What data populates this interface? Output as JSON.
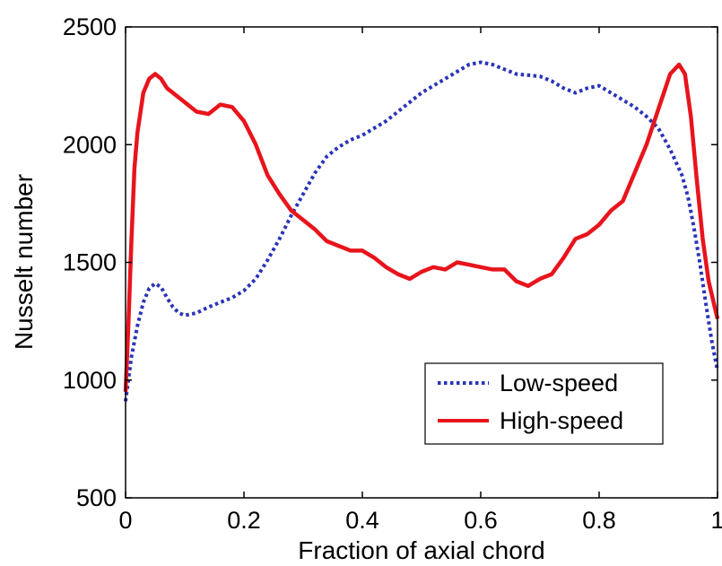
{
  "chart_data": {
    "type": "line",
    "xlabel": "Fraction of axial chord",
    "ylabel": "Nusselt number",
    "xlim": [
      0,
      1
    ],
    "ylim": [
      500,
      2500
    ],
    "xticks": [
      0,
      0.2,
      0.4,
      0.6,
      0.8,
      1
    ],
    "xtick_labels": [
      "0",
      "0.2",
      "0.4",
      "0.6",
      "0.8",
      "1"
    ],
    "yticks": [
      500,
      1000,
      1500,
      2000,
      2500
    ],
    "ytick_labels": [
      "500",
      "1000",
      "1500",
      "2000",
      "2500"
    ],
    "grid": false,
    "legend_position": "lower-right",
    "series": [
      {
        "name": "Low-speed",
        "color": "#2a34b8",
        "style": "dotted",
        "x": [
          0,
          0.01,
          0.02,
          0.03,
          0.04,
          0.05,
          0.06,
          0.07,
          0.08,
          0.09,
          0.1,
          0.12,
          0.14,
          0.16,
          0.18,
          0.2,
          0.22,
          0.24,
          0.26,
          0.28,
          0.3,
          0.32,
          0.34,
          0.36,
          0.38,
          0.4,
          0.42,
          0.44,
          0.46,
          0.48,
          0.5,
          0.52,
          0.54,
          0.56,
          0.58,
          0.6,
          0.62,
          0.64,
          0.66,
          0.68,
          0.7,
          0.72,
          0.74,
          0.76,
          0.78,
          0.8,
          0.82,
          0.84,
          0.86,
          0.88,
          0.9,
          0.92,
          0.94,
          0.95,
          0.96,
          0.97,
          0.98,
          0.99,
          1.0
        ],
        "y": [
          910,
          1100,
          1230,
          1330,
          1390,
          1410,
          1395,
          1350,
          1310,
          1285,
          1275,
          1285,
          1310,
          1330,
          1350,
          1380,
          1430,
          1510,
          1600,
          1700,
          1790,
          1880,
          1950,
          1990,
          2020,
          2040,
          2070,
          2100,
          2140,
          2180,
          2220,
          2250,
          2280,
          2310,
          2340,
          2350,
          2340,
          2320,
          2300,
          2295,
          2290,
          2270,
          2240,
          2220,
          2240,
          2250,
          2220,
          2190,
          2160,
          2120,
          2070,
          1980,
          1870,
          1780,
          1650,
          1500,
          1330,
          1170,
          1040
        ]
      },
      {
        "name": "High-speed",
        "color": "#e8141c",
        "style": "solid",
        "x": [
          0,
          0.005,
          0.01,
          0.015,
          0.02,
          0.03,
          0.04,
          0.05,
          0.06,
          0.07,
          0.08,
          0.1,
          0.12,
          0.14,
          0.16,
          0.18,
          0.2,
          0.22,
          0.24,
          0.26,
          0.28,
          0.3,
          0.32,
          0.34,
          0.36,
          0.38,
          0.4,
          0.42,
          0.44,
          0.46,
          0.48,
          0.5,
          0.52,
          0.54,
          0.56,
          0.58,
          0.6,
          0.62,
          0.64,
          0.66,
          0.68,
          0.7,
          0.72,
          0.74,
          0.76,
          0.78,
          0.8,
          0.82,
          0.84,
          0.86,
          0.88,
          0.9,
          0.92,
          0.935,
          0.945,
          0.955,
          0.965,
          0.975,
          0.985,
          1.0
        ],
        "y": [
          950,
          1250,
          1600,
          1900,
          2050,
          2220,
          2280,
          2300,
          2280,
          2240,
          2220,
          2180,
          2140,
          2130,
          2170,
          2160,
          2100,
          2000,
          1870,
          1790,
          1720,
          1680,
          1640,
          1590,
          1570,
          1550,
          1550,
          1520,
          1480,
          1450,
          1430,
          1460,
          1480,
          1470,
          1500,
          1490,
          1480,
          1470,
          1470,
          1420,
          1400,
          1430,
          1450,
          1520,
          1600,
          1620,
          1660,
          1720,
          1760,
          1880,
          2000,
          2150,
          2300,
          2340,
          2300,
          2120,
          1850,
          1600,
          1420,
          1260
        ]
      }
    ]
  }
}
